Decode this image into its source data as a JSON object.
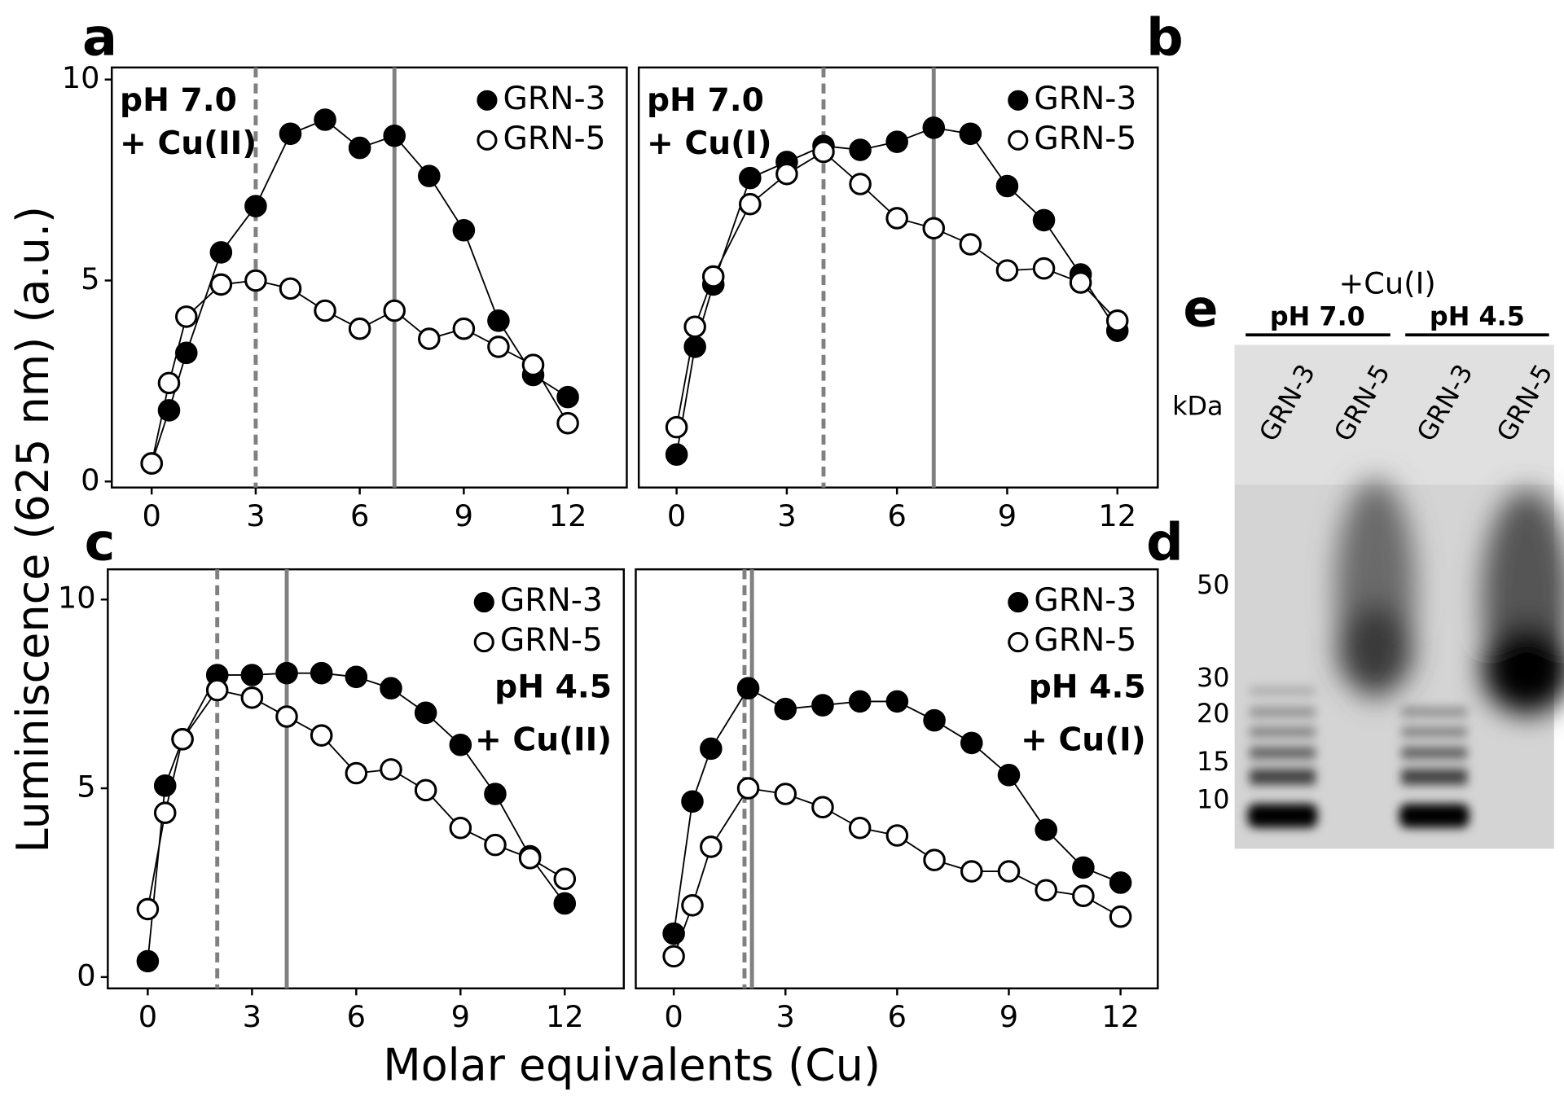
{
  "figure": {
    "panel_labels": [
      "a",
      "b",
      "c",
      "d",
      "e"
    ],
    "y_label": "Luminiscence (625 nm) (a.u.)",
    "x_label": "Molar equivalents (Cu)"
  },
  "chart_data": [
    {
      "type": "line",
      "annotation": [
        "pH 7.0",
        "+ Cu(II)"
      ],
      "annotation_loc": "upper left",
      "legend": "upper right",
      "x": [
        0,
        0.5,
        1,
        2,
        3,
        4,
        5,
        6,
        7,
        8,
        9,
        10,
        11,
        12
      ],
      "series": [
        {
          "name": "GRN-3",
          "color": "#000000",
          "marker": "filled",
          "values": [
            0.45,
            1.77,
            3.2,
            5.7,
            6.85,
            8.65,
            9.0,
            8.3,
            8.6,
            7.6,
            6.25,
            4.0,
            2.65,
            2.1
          ]
        },
        {
          "name": "GRN-5",
          "color": "#000000",
          "marker": "open",
          "values": [
            0.45,
            2.45,
            4.1,
            4.9,
            5.0,
            4.8,
            4.25,
            3.8,
            4.25,
            3.55,
            3.8,
            3.35,
            2.9,
            1.45
          ]
        }
      ],
      "vlines": [
        {
          "x": 3,
          "style": "dashed"
        },
        {
          "x": 7,
          "style": "solid"
        }
      ],
      "xlim": [
        -1.15,
        13.7
      ],
      "ylim": [
        -0.15,
        10.3
      ],
      "xticks": [
        0,
        3,
        6,
        9,
        12
      ],
      "yticks": [
        0,
        5,
        10
      ]
    },
    {
      "type": "line",
      "annotation": [
        "pH 7.0",
        "+ Cu(I)"
      ],
      "annotation_loc": "upper left",
      "legend": "upper right",
      "x": [
        0,
        0.5,
        1,
        2,
        3,
        4,
        5,
        6,
        7,
        8,
        9,
        10,
        11,
        12
      ],
      "series": [
        {
          "name": "GRN-3",
          "color": "#000000",
          "marker": "filled",
          "values": [
            0.67,
            3.35,
            4.9,
            7.55,
            7.95,
            8.35,
            8.25,
            8.45,
            8.8,
            8.65,
            7.35,
            6.5,
            5.15,
            3.75
          ]
        },
        {
          "name": "GRN-5",
          "color": "#000000",
          "marker": "open",
          "values": [
            1.35,
            3.85,
            5.1,
            6.9,
            7.65,
            8.2,
            7.4,
            6.55,
            6.3,
            5.9,
            5.25,
            5.3,
            4.95,
            4.0
          ]
        }
      ],
      "vlines": [
        {
          "x": 4,
          "style": "dashed"
        },
        {
          "x": 7,
          "style": "solid"
        }
      ],
      "xlim": [
        -1.03,
        13.1
      ],
      "ylim": [
        -0.15,
        10.3
      ],
      "xticks": [
        0,
        3,
        6,
        9,
        12
      ]
    },
    {
      "type": "line",
      "annotation": [
        "pH 4.5",
        "+ Cu(II)"
      ],
      "annotation_loc": "right",
      "legend": "upper right",
      "x": [
        0,
        0.5,
        1,
        2,
        3,
        4,
        5,
        6,
        7,
        8,
        9,
        10,
        11,
        12
      ],
      "series": [
        {
          "name": "GRN-3",
          "color": "#000000",
          "marker": "filled",
          "values": [
            0.42,
            5.07,
            6.3,
            8.0,
            8.0,
            8.05,
            8.05,
            7.95,
            7.65,
            7.0,
            6.15,
            4.85,
            3.2,
            1.95
          ]
        },
        {
          "name": "GRN-5",
          "color": "#000000",
          "marker": "open",
          "values": [
            1.8,
            4.35,
            6.3,
            7.6,
            7.4,
            6.9,
            6.4,
            5.4,
            5.5,
            4.95,
            3.95,
            3.5,
            3.15,
            2.6
          ]
        }
      ],
      "vlines": [
        {
          "x": 2,
          "style": "dashed"
        },
        {
          "x": 4,
          "style": "solid"
        }
      ],
      "xlim": [
        -1.15,
        13.7
      ],
      "ylim": [
        -0.3,
        10.8
      ],
      "xticks": [
        0,
        3,
        6,
        9,
        12
      ],
      "yticks": [
        0,
        5,
        10
      ]
    },
    {
      "type": "line",
      "annotation": [
        "pH 4.5",
        "+ Cu(I)"
      ],
      "annotation_loc": "right",
      "legend": "upper right",
      "x": [
        0,
        0.5,
        1,
        2,
        3,
        4,
        5,
        6,
        7,
        8,
        9,
        10,
        11,
        12
      ],
      "series": [
        {
          "name": "GRN-3",
          "color": "#000000",
          "marker": "filled",
          "values": [
            1.15,
            4.65,
            6.05,
            7.65,
            7.1,
            7.2,
            7.3,
            7.3,
            6.8,
            6.2,
            5.35,
            3.9,
            2.9,
            2.5
          ]
        },
        {
          "name": "GRN-5",
          "color": "#000000",
          "marker": "open",
          "values": [
            0.55,
            1.9,
            3.45,
            5.0,
            4.85,
            4.5,
            3.95,
            3.75,
            3.1,
            2.8,
            2.8,
            2.3,
            2.15,
            1.6
          ]
        }
      ],
      "vlines": [
        {
          "x": 1.9,
          "style": "dashed"
        },
        {
          "x": 2.1,
          "style": "solid"
        }
      ],
      "xlim": [
        -1.02,
        13.0
      ],
      "ylim": [
        -0.3,
        10.8
      ],
      "xticks": [
        0,
        3,
        6,
        9,
        12
      ]
    }
  ],
  "gel": {
    "title": "+Cu(I)",
    "groups": [
      "pH 7.0",
      "pH 4.5"
    ],
    "unit": "kDa",
    "lanes": [
      "GRN-3",
      "GRN-5",
      "GRN-3",
      "GRN-5"
    ],
    "markers": [
      "50",
      "30",
      "20",
      "15",
      "10"
    ]
  }
}
